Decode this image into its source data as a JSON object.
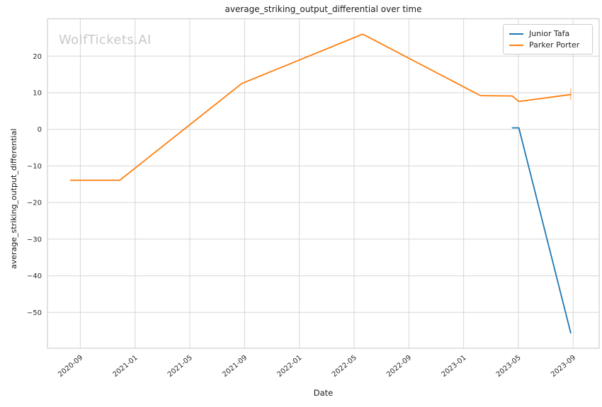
{
  "watermark": "WolfTickets.AI",
  "chart_data": {
    "type": "line",
    "title": "average_striking_output_differential over time",
    "xlabel": "Date",
    "ylabel": "average_striking_output_differential",
    "grid": true,
    "legend_position": "upper right",
    "x_tick_labels": [
      "2020-09",
      "2021-01",
      "2021-05",
      "2021-09",
      "2022-01",
      "2022-05",
      "2022-09",
      "2023-01",
      "2023-05",
      "2023-09"
    ],
    "y_ticks": [
      20,
      10,
      0,
      -10,
      -20,
      -30,
      -40,
      -50
    ],
    "xlim_months_from_2020_01": [
      5.6,
      45.9
    ],
    "ylim": [
      -59.8,
      30.2
    ],
    "series": [
      {
        "name": "Junior Tafa",
        "color": "#1f77b4",
        "points": [
          {
            "date": "2023-04-18",
            "value": 0.4
          },
          {
            "date": "2023-05-02",
            "value": 0.4
          },
          {
            "date": "2023-08-26",
            "value": -55.6
          }
        ]
      },
      {
        "name": "Parker Porter",
        "color": "#ff7f0e",
        "points": [
          {
            "date": "2020-08-10",
            "value": -13.9
          },
          {
            "date": "2020-11-28",
            "value": -13.9
          },
          {
            "date": "2021-08-25",
            "value": 12.5
          },
          {
            "date": "2022-05-20",
            "value": 26.0
          },
          {
            "date": "2023-02-08",
            "value": 9.2
          },
          {
            "date": "2023-04-18",
            "value": 9.1
          },
          {
            "date": "2023-05-02",
            "value": 7.6
          },
          {
            "date": "2023-08-26",
            "value": 9.5
          }
        ],
        "last_point_error_cap": {
          "value_low": 8.0,
          "value_high": 11.2
        }
      }
    ]
  }
}
